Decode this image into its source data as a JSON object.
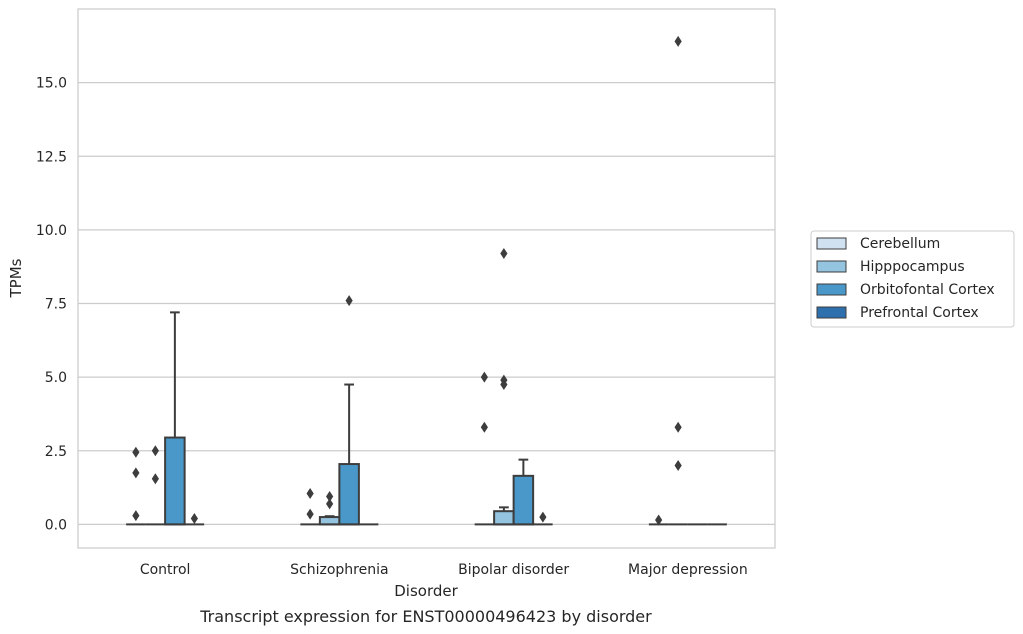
{
  "chart_data": {
    "type": "box",
    "caption": "Transcript expression for ENST00000496423 by disorder",
    "xlabel": "Disorder",
    "ylabel": "TPMs",
    "ylim": [
      -0.8,
      17.5
    ],
    "yticks": [
      0.0,
      2.5,
      5.0,
      7.5,
      10.0,
      12.5,
      15.0
    ],
    "ytick_labels": [
      "0.0",
      "2.5",
      "5.0",
      "7.5",
      "10.0",
      "12.5",
      "15.0"
    ],
    "grid": "horizontal",
    "legend_position": "right",
    "categories": [
      "Control",
      "Schizophrenia",
      "Bipolar disorder",
      "Major depression"
    ],
    "series": [
      {
        "name": "Cerebellum",
        "color": "#d0e1f2",
        "boxes": [
          {
            "q1": 0,
            "median": 0,
            "q3": 0,
            "whisker_low": 0,
            "whisker_high": 0,
            "outliers": [
              0.3,
              1.75,
              2.45
            ]
          },
          {
            "q1": 0,
            "median": 0,
            "q3": 0,
            "whisker_low": 0,
            "whisker_high": 0,
            "outliers": [
              0.35,
              1.05
            ]
          },
          {
            "q1": 0,
            "median": 0,
            "q3": 0,
            "whisker_low": 0,
            "whisker_high": 0,
            "outliers": [
              3.3,
              5.0
            ]
          },
          {
            "q1": 0,
            "median": 0,
            "q3": 0,
            "whisker_low": 0,
            "whisker_high": 0,
            "outliers": [
              0.15
            ]
          }
        ]
      },
      {
        "name": "Hipppocampus",
        "color": "#94c4df",
        "boxes": [
          {
            "q1": 0,
            "median": 0,
            "q3": 0,
            "whisker_low": 0,
            "whisker_high": 0,
            "outliers": [
              1.55,
              2.5
            ]
          },
          {
            "q1": 0,
            "median": 0,
            "q3": 0.25,
            "whisker_low": 0,
            "whisker_high": 0.28,
            "outliers": [
              0.7,
              0.95
            ]
          },
          {
            "q1": 0,
            "median": 0,
            "q3": 0.45,
            "whisker_low": 0,
            "whisker_high": 0.58,
            "outliers": [
              4.75,
              4.9,
              9.2
            ]
          },
          {
            "q1": 0,
            "median": 0,
            "q3": 0,
            "whisker_low": 0,
            "whisker_high": 0,
            "outliers": [
              2.0,
              3.3,
              16.4
            ]
          }
        ]
      },
      {
        "name": "Orbitofontal Cortex",
        "color": "#4a98c9",
        "boxes": [
          {
            "q1": 0,
            "median": 0,
            "q3": 2.95,
            "whisker_low": 0,
            "whisker_high": 7.2,
            "outliers": []
          },
          {
            "q1": 0,
            "median": 0,
            "q3": 2.05,
            "whisker_low": 0,
            "whisker_high": 4.75,
            "outliers": [
              7.6
            ]
          },
          {
            "q1": 0,
            "median": 0,
            "q3": 1.65,
            "whisker_low": 0,
            "whisker_high": 2.2,
            "outliers": []
          },
          {
            "q1": 0,
            "median": 0,
            "q3": 0,
            "whisker_low": 0,
            "whisker_high": 0,
            "outliers": []
          }
        ]
      },
      {
        "name": "Prefrontal Cortex",
        "color": "#2e6fad",
        "boxes": [
          {
            "q1": 0,
            "median": 0,
            "q3": 0,
            "whisker_low": 0,
            "whisker_high": 0,
            "outliers": [
              0.2
            ]
          },
          {
            "q1": 0,
            "median": 0,
            "q3": 0,
            "whisker_low": 0,
            "whisker_high": 0,
            "outliers": []
          },
          {
            "q1": 0,
            "median": 0,
            "q3": 0,
            "whisker_low": 0,
            "whisker_high": 0,
            "outliers": [
              0.25
            ]
          },
          {
            "q1": 0,
            "median": 0,
            "q3": 0,
            "whisker_low": 0,
            "whisker_high": 0,
            "outliers": []
          }
        ]
      }
    ]
  }
}
